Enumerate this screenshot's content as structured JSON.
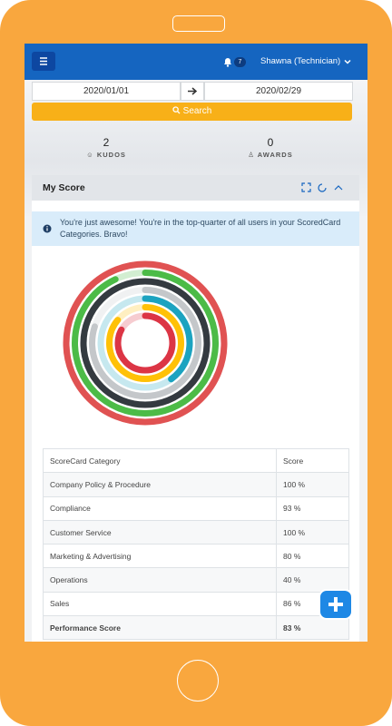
{
  "topbar": {
    "notifications": 7,
    "user": "Shawna (Technician)"
  },
  "filters": {
    "start_date": "2020/01/01",
    "end_date": "2020/02/29",
    "search": "Search"
  },
  "stats": [
    {
      "count": 2,
      "label": "KUDOS"
    },
    {
      "count": 0,
      "label": "AWARDS"
    }
  ],
  "card": {
    "title": "My Score",
    "alert": "You're just awesome! You're in the top-quarter of all users in your ScoredCard Categories. Bravo!"
  },
  "chart_data": {
    "type": "radial",
    "categories": [
      "Company Policy & Procedure",
      "Compliance",
      "Customer Service",
      "Marketing & Advertising",
      "Operations",
      "Sales",
      "Performance Score"
    ],
    "values": [
      100,
      93,
      100,
      80,
      40,
      86,
      83
    ],
    "value_labels": [
      "100 %",
      "93 %",
      "100 %",
      "80 %",
      "40 %",
      "86 %",
      "83 %"
    ],
    "colors": [
      "#e05252",
      "#4cbb47",
      "#343a40",
      "#c4c7ca",
      "#1ca3c0",
      "#ffc107",
      "#dc3545"
    ]
  },
  "table": {
    "headers": [
      "ScoreCard Category",
      "Score"
    ]
  }
}
